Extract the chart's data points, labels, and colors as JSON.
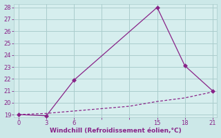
{
  "line1_x": [
    0,
    3,
    6,
    15,
    18,
    21
  ],
  "line1_y": [
    19,
    18.9,
    21.9,
    28,
    23.1,
    21.0
  ],
  "line2_x": [
    0,
    3,
    6,
    9,
    12,
    15,
    18,
    21
  ],
  "line2_y": [
    19.0,
    19.1,
    19.3,
    19.5,
    19.7,
    20.1,
    20.4,
    20.9
  ],
  "line_color": "#882288",
  "bg_color": "#cce8e8",
  "plot_bg_color": "#d6eeee",
  "grid_color": "#aacccc",
  "xlabel": "Windchill (Refroidissement éolien,°C)",
  "xlabel_color": "#882288",
  "tick_color": "#882288",
  "xlim": [
    -0.5,
    21.5
  ],
  "ylim": [
    18.8,
    28.3
  ],
  "xticks": [
    0,
    3,
    6,
    9,
    12,
    15,
    18,
    21
  ],
  "xtick_labels": [
    "0",
    "3",
    "6",
    "",
    "",
    "15",
    "18",
    "21"
  ],
  "yticks": [
    19,
    20,
    21,
    22,
    23,
    24,
    25,
    26,
    27,
    28
  ],
  "marker": "D",
  "marker_size": 3,
  "line_width": 0.9
}
